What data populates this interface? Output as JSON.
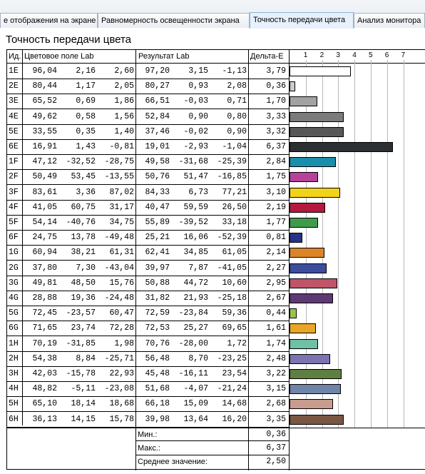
{
  "tabs": [
    {
      "label": "е отображения на экране",
      "active": false
    },
    {
      "label": "Равномерность освещенности экрана",
      "active": false
    },
    {
      "label": "Точность передачи цвета",
      "active": true
    },
    {
      "label": "Анализ монитора",
      "active": false
    }
  ],
  "title": "Точность передачи цвета",
  "headers": {
    "id": "Ид.",
    "lab": "Цветовое поле Lab",
    "result": "Результат Lab",
    "delta": "Дельта-Е"
  },
  "scale_ticks": [
    "1",
    "2",
    "3",
    "4",
    "5",
    "6",
    "7"
  ],
  "rows": [
    {
      "id": "1E",
      "L": "96,04",
      "a": "2,16",
      "b": "2,60",
      "rL": "97,20",
      "ra": "3,15",
      "rb": "-1,13",
      "de": "3,79",
      "de_value": 3.79,
      "color": "#ffffff"
    },
    {
      "id": "2E",
      "L": "80,44",
      "a": "1,17",
      "b": "2,05",
      "rL": "80,27",
      "ra": "0,93",
      "rb": "2,08",
      "de": "0,36",
      "de_value": 0.36,
      "color": "#cbcbcb"
    },
    {
      "id": "3E",
      "L": "65,52",
      "a": "0,69",
      "b": "1,86",
      "rL": "66,51",
      "ra": "-0,03",
      "rb": "0,71",
      "de": "1,70",
      "de_value": 1.7,
      "color": "#a2a2a2"
    },
    {
      "id": "4E",
      "L": "49,62",
      "a": "0,58",
      "b": "1,56",
      "rL": "52,84",
      "ra": "0,90",
      "rb": "0,80",
      "de": "3,33",
      "de_value": 3.33,
      "color": "#7b7b7b"
    },
    {
      "id": "5E",
      "L": "33,55",
      "a": "0,35",
      "b": "1,40",
      "rL": "37,46",
      "ra": "-0,02",
      "rb": "0,90",
      "de": "3,32",
      "de_value": 3.32,
      "color": "#575757"
    },
    {
      "id": "6E",
      "L": "16,91",
      "a": "1,43",
      "b": "-0,81",
      "rL": "19,01",
      "ra": "-2,93",
      "rb": "-1,04",
      "de": "6,37",
      "de_value": 6.37,
      "color": "#2c3033"
    },
    {
      "id": "1F",
      "L": "47,12",
      "a": "-32,52",
      "b": "-28,75",
      "rL": "49,58",
      "ra": "-31,68",
      "rb": "-25,39",
      "de": "2,84",
      "de_value": 2.84,
      "color": "#1a8fab"
    },
    {
      "id": "2F",
      "L": "50,49",
      "a": "53,45",
      "b": "-13,55",
      "rL": "50,76",
      "ra": "51,47",
      "rb": "-16,85",
      "de": "1,75",
      "de_value": 1.75,
      "color": "#b8419b"
    },
    {
      "id": "3F",
      "L": "83,61",
      "a": "3,36",
      "b": "87,02",
      "rL": "84,33",
      "ra": "6,73",
      "rb": "77,21",
      "de": "3,10",
      "de_value": 3.1,
      "color": "#f2d31a"
    },
    {
      "id": "4F",
      "L": "41,05",
      "a": "60,75",
      "b": "31,17",
      "rL": "40,47",
      "ra": "59,59",
      "rb": "26,50",
      "de": "2,19",
      "de_value": 2.19,
      "color": "#b5193f"
    },
    {
      "id": "5F",
      "L": "54,14",
      "a": "-40,76",
      "b": "34,75",
      "rL": "55,89",
      "ra": "-39,52",
      "rb": "33,18",
      "de": "1,77",
      "de_value": 1.77,
      "color": "#3f9b4a"
    },
    {
      "id": "6F",
      "L": "24,75",
      "a": "13,78",
      "b": "-49,48",
      "rL": "25,21",
      "ra": "16,06",
      "rb": "-52,39",
      "de": "0,81",
      "de_value": 0.81,
      "color": "#25338a"
    },
    {
      "id": "1G",
      "L": "60,94",
      "a": "38,21",
      "b": "61,31",
      "rL": "62,41",
      "ra": "34,85",
      "rb": "61,05",
      "de": "2,14",
      "de_value": 2.14,
      "color": "#dc8428"
    },
    {
      "id": "2G",
      "L": "37,80",
      "a": "7,30",
      "b": "-43,04",
      "rL": "39,97",
      "ra": "7,87",
      "rb": "-41,05",
      "de": "2,27",
      "de_value": 2.27,
      "color": "#3d4d9e"
    },
    {
      "id": "3G",
      "L": "49,81",
      "a": "48,50",
      "b": "15,76",
      "rL": "50,88",
      "ra": "44,72",
      "rb": "10,60",
      "de": "2,95",
      "de_value": 2.95,
      "color": "#c05468"
    },
    {
      "id": "4G",
      "L": "28,88",
      "a": "19,36",
      "b": "-24,48",
      "rL": "31,82",
      "ra": "21,93",
      "rb": "-25,18",
      "de": "2,67",
      "de_value": 2.67,
      "color": "#5e3a74"
    },
    {
      "id": "5G",
      "L": "72,45",
      "a": "-23,57",
      "b": "60,47",
      "rL": "72,59",
      "ra": "-23,84",
      "rb": "59,36",
      "de": "0,44",
      "de_value": 0.44,
      "color": "#9ac543"
    },
    {
      "id": "6G",
      "L": "71,65",
      "a": "23,74",
      "b": "72,28",
      "rL": "72,53",
      "ra": "25,27",
      "rb": "69,65",
      "de": "1,61",
      "de_value": 1.61,
      "color": "#e9a626"
    },
    {
      "id": "1H",
      "L": "70,19",
      "a": "-31,85",
      "b": "1,98",
      "rL": "70,76",
      "ra": "-28,00",
      "rb": "1,72",
      "de": "1,74",
      "de_value": 1.74,
      "color": "#6fc0a5"
    },
    {
      "id": "2H",
      "L": "54,38",
      "a": "8,84",
      "b": "-25,71",
      "rL": "56,48",
      "ra": "8,70",
      "rb": "-23,25",
      "de": "2,48",
      "de_value": 2.48,
      "color": "#7b74b0"
    },
    {
      "id": "3H",
      "L": "42,03",
      "a": "-15,78",
      "b": "22,93",
      "rL": "45,48",
      "ra": "-16,11",
      "rb": "23,54",
      "de": "3,22",
      "de_value": 3.22,
      "color": "#5f7f42"
    },
    {
      "id": "4H",
      "L": "48,82",
      "a": "-5,11",
      "b": "-23,08",
      "rL": "51,68",
      "ra": "-4,07",
      "rb": "-21,24",
      "de": "3,15",
      "de_value": 3.15,
      "color": "#6e84a8"
    },
    {
      "id": "5H",
      "L": "65,10",
      "a": "18,14",
      "b": "18,68",
      "rL": "66,18",
      "ra": "15,09",
      "rb": "14,68",
      "de": "2,68",
      "de_value": 2.68,
      "color": "#c89c8e"
    },
    {
      "id": "6H",
      "L": "36,13",
      "a": "14,15",
      "b": "15,78",
      "rL": "39,98",
      "ra": "13,64",
      "rb": "16,20",
      "de": "3,35",
      "de_value": 3.35,
      "color": "#7a5742"
    }
  ],
  "summary": [
    {
      "label": "Мин.:",
      "value": "0,36"
    },
    {
      "label": "Макс.:",
      "value": "6,37"
    },
    {
      "label": "Среднее значение:",
      "value": "2,50"
    }
  ]
}
